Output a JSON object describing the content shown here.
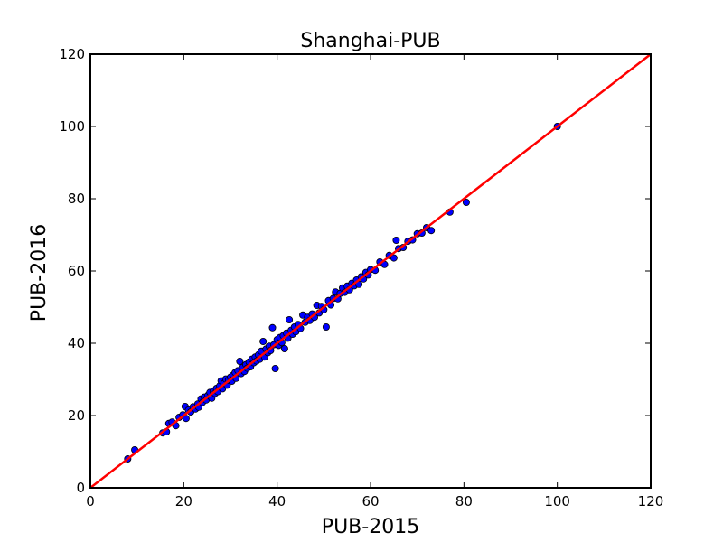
{
  "chart_data": {
    "type": "scatter",
    "title": "Shanghai-PUB",
    "xlabel": "PUB-2015",
    "ylabel": "PUB-2016",
    "xlim": [
      0,
      120
    ],
    "ylim": [
      0,
      120
    ],
    "xticks": [
      0,
      20,
      40,
      60,
      80,
      100,
      120
    ],
    "yticks": [
      0,
      20,
      40,
      60,
      80,
      100,
      120
    ],
    "grid": false,
    "point_color": "#0000ff",
    "line_color": "#ff0000",
    "reference_line": {
      "from": [
        0,
        0
      ],
      "to": [
        120,
        120
      ]
    },
    "points": [
      [
        8,
        8
      ],
      [
        9.5,
        10.5
      ],
      [
        15.5,
        15.2
      ],
      [
        16.3,
        15.5
      ],
      [
        16.8,
        17.8
      ],
      [
        17.5,
        18.2
      ],
      [
        18.3,
        17.2
      ],
      [
        19,
        19.5
      ],
      [
        19.8,
        20.2
      ],
      [
        20.3,
        22.5
      ],
      [
        20.5,
        19.2
      ],
      [
        21,
        21.5
      ],
      [
        21.5,
        21
      ],
      [
        22,
        22.4
      ],
      [
        22.5,
        21.8
      ],
      [
        23,
        23.2
      ],
      [
        23.2,
        22.3
      ],
      [
        23.7,
        24.6
      ],
      [
        24,
        23.6
      ],
      [
        24.4,
        25.1
      ],
      [
        24.8,
        24.3
      ],
      [
        25.2,
        25.6
      ],
      [
        25.6,
        26.4
      ],
      [
        26,
        24.8
      ],
      [
        26.3,
        26.7
      ],
      [
        26.7,
        26.1
      ],
      [
        27,
        27.5
      ],
      [
        27.3,
        26.6
      ],
      [
        27.7,
        28.2
      ],
      [
        28,
        29.6
      ],
      [
        28.3,
        27.4
      ],
      [
        28.6,
        28.9
      ],
      [
        29,
        30.1
      ],
      [
        29.3,
        28.4
      ],
      [
        29.6,
        29.8
      ],
      [
        30,
        30.6
      ],
      [
        30.3,
        29.5
      ],
      [
        30.6,
        31.2
      ],
      [
        31,
        31.9
      ],
      [
        31.2,
        30.3
      ],
      [
        31.6,
        32.4
      ],
      [
        32,
        35
      ],
      [
        32.3,
        31.6
      ],
      [
        32.6,
        33.3
      ],
      [
        33,
        32.2
      ],
      [
        33.3,
        34.1
      ],
      [
        33.6,
        33.1
      ],
      [
        34,
        34.8
      ],
      [
        34.3,
        33.5
      ],
      [
        34.6,
        35.6
      ],
      [
        35,
        34.6
      ],
      [
        35.3,
        36.2
      ],
      [
        35.6,
        35.1
      ],
      [
        36,
        36.8
      ],
      [
        36.3,
        35.6
      ],
      [
        36.6,
        37.8
      ],
      [
        37,
        40.5
      ],
      [
        37.3,
        36.2
      ],
      [
        37.6,
        38.4
      ],
      [
        38,
        37.4
      ],
      [
        38.3,
        39.2
      ],
      [
        38.6,
        38
      ],
      [
        39,
        44.3
      ],
      [
        39.3,
        39.6
      ],
      [
        39.6,
        33
      ],
      [
        40,
        41
      ],
      [
        40.3,
        39.4
      ],
      [
        40.6,
        41.6
      ],
      [
        41,
        40.2
      ],
      [
        41.3,
        42.1
      ],
      [
        41.6,
        38.5
      ],
      [
        42,
        42.8
      ],
      [
        42.3,
        41.4
      ],
      [
        42.6,
        46.5
      ],
      [
        43,
        43.6
      ],
      [
        43.3,
        42.5
      ],
      [
        43.7,
        44.5
      ],
      [
        44,
        43.2
      ],
      [
        44.5,
        45.2
      ],
      [
        45,
        44.1
      ],
      [
        45.5,
        47.8
      ],
      [
        46,
        45.8
      ],
      [
        46.5,
        47.2
      ],
      [
        47,
        46.3
      ],
      [
        47.5,
        48.1
      ],
      [
        48,
        47.2
      ],
      [
        48.5,
        50.5
      ],
      [
        49,
        48.4
      ],
      [
        49.5,
        50.2
      ],
      [
        50,
        49.3
      ],
      [
        50.5,
        44.5
      ],
      [
        51,
        51.8
      ],
      [
        51.5,
        50.6
      ],
      [
        52,
        52.4
      ],
      [
        52.5,
        54.2
      ],
      [
        53,
        52.3
      ],
      [
        53.5,
        53.8
      ],
      [
        54,
        55.3
      ],
      [
        54.5,
        54.1
      ],
      [
        55,
        55.8
      ],
      [
        55.5,
        54.8
      ],
      [
        56,
        56.6
      ],
      [
        56.5,
        55.9
      ],
      [
        57,
        57.5
      ],
      [
        57.5,
        56.3
      ],
      [
        58,
        58.4
      ],
      [
        58.5,
        57.8
      ],
      [
        59,
        59.6
      ],
      [
        59.5,
        58.9
      ],
      [
        60,
        60.4
      ],
      [
        61,
        60.2
      ],
      [
        62,
        62.5
      ],
      [
        63,
        61.8
      ],
      [
        64,
        64.3
      ],
      [
        65,
        63.6
      ],
      [
        65.5,
        68.5
      ],
      [
        66,
        66.2
      ],
      [
        67,
        66.5
      ],
      [
        68,
        68.2
      ],
      [
        69,
        68.6
      ],
      [
        70,
        70.3
      ],
      [
        71,
        70.5
      ],
      [
        72,
        72
      ],
      [
        73,
        71.2
      ],
      [
        77,
        76.3
      ],
      [
        80.5,
        79
      ],
      [
        100,
        100
      ]
    ]
  }
}
